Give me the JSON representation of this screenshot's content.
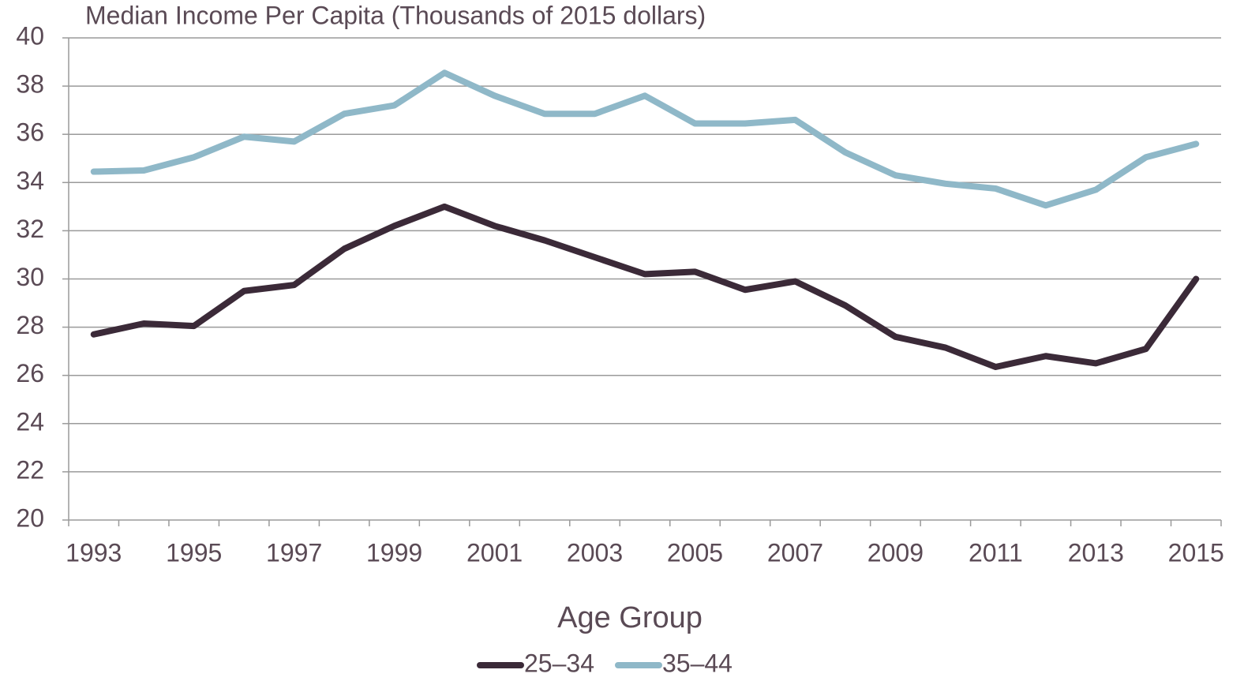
{
  "chart_data": {
    "type": "line",
    "title": "Median Income Per Capita (Thousands of 2015 dollars)",
    "x_label": "Age Group",
    "categories": [
      "1993",
      null,
      "1995",
      null,
      "1997",
      null,
      "1999",
      null,
      "2001",
      null,
      "2003",
      null,
      "2005",
      null,
      "2007",
      null,
      "2009",
      null,
      "2011",
      null,
      "2013",
      null,
      "2015"
    ],
    "series": [
      {
        "name": "25–34",
        "color": "#3b2a38",
        "values": [
          27.7,
          28.15,
          28.05,
          29.5,
          29.75,
          31.25,
          32.2,
          33.0,
          32.2,
          31.6,
          30.9,
          30.2,
          30.3,
          29.55,
          29.9,
          28.9,
          27.6,
          27.15,
          26.35,
          26.8,
          26.5,
          27.1,
          30.0
        ]
      },
      {
        "name": "35–44",
        "color": "#8fb8c8",
        "values": [
          34.45,
          34.5,
          35.05,
          35.9,
          35.7,
          36.85,
          37.2,
          38.55,
          37.6,
          36.85,
          36.85,
          37.6,
          36.45,
          36.45,
          36.6,
          35.25,
          34.3,
          33.95,
          33.75,
          33.05,
          33.7,
          35.05,
          35.6
        ]
      }
    ],
    "ylim": [
      20,
      40
    ],
    "yticks": [
      20,
      22,
      24,
      26,
      28,
      30,
      32,
      34,
      36,
      38,
      40
    ],
    "grid": true
  }
}
